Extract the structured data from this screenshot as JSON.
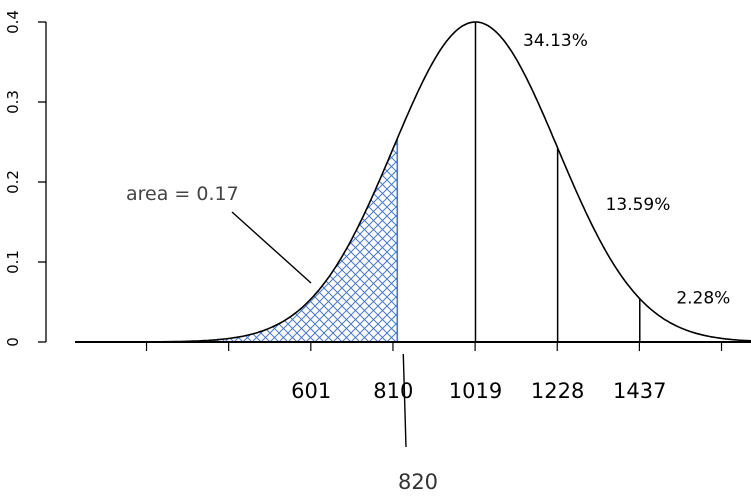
{
  "chart_data": {
    "type": "area",
    "distribution": {
      "mean": 1019,
      "sd": 209
    },
    "ylim": [
      0,
      0.4
    ],
    "xlim": [
      0,
      1720
    ],
    "yticks": [
      0,
      0.1,
      0.2,
      0.3,
      0.4
    ],
    "ytick_labels": [
      "0",
      "0.1",
      "0.2",
      "0.3",
      "0.4"
    ],
    "xticks": [
      601,
      810,
      1019,
      1228,
      1437
    ],
    "xtick_labels": [
      "601",
      "810",
      "1019",
      "1228",
      "1437"
    ],
    "vlines": [
      1019,
      1228,
      1437
    ],
    "shaded_region": {
      "from": 0,
      "to": 820,
      "area_label": "area = 0.17",
      "color": "#4a78c8"
    },
    "percent_labels": [
      {
        "text": "34.13%",
        "x": 1140,
        "y": 0.37
      },
      {
        "text": "13.59%",
        "x": 1350,
        "y": 0.165
      },
      {
        "text": "2.28%",
        "x": 1530,
        "y": 0.048
      }
    ],
    "marker": {
      "value": 820,
      "label": "820"
    },
    "curve_color": "#000000"
  }
}
